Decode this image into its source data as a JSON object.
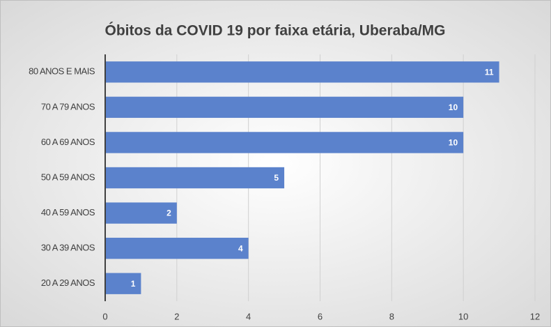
{
  "chart_data": {
    "type": "bar",
    "orientation": "horizontal",
    "title": "Óbitos da COVID 19 por faixa etária, Uberaba/MG",
    "categories": [
      "80 ANOS E MAIS",
      "70 A 79 ANOS",
      "60 A 69 ANOS",
      "50 A 59 ANOS",
      "40 A 59 ANOS",
      "30 A 39 ANOS",
      "20 A 29 ANOS"
    ],
    "values": [
      11,
      10,
      10,
      5,
      2,
      4,
      1
    ],
    "color": "#5b82cc",
    "xlim": [
      0,
      12
    ],
    "xticks": [
      0,
      2,
      4,
      6,
      8,
      10,
      12
    ],
    "grid": true
  }
}
